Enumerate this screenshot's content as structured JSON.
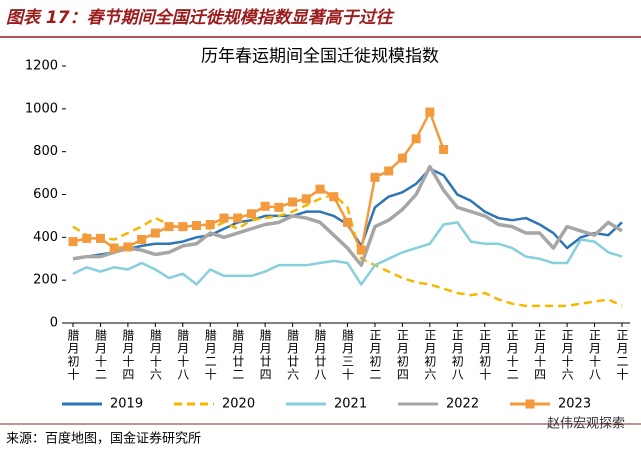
{
  "header": {
    "title": "图表 17：春节期间全国迁徙规模指数显著高于过往"
  },
  "chart_data": {
    "type": "line",
    "title": "历年春运期间全国迁徙规模指数",
    "categories": [
      "腊月初十",
      null,
      "腊月十二",
      null,
      "腊月十四",
      null,
      "腊月十六",
      null,
      "腊月十八",
      null,
      "腊月二十",
      null,
      "腊月廿二",
      null,
      "腊月廿四",
      null,
      "腊月廿六",
      null,
      "腊月廿八",
      null,
      "腊月三十",
      null,
      "正月初二",
      null,
      "正月初四",
      null,
      "正月初六",
      null,
      "正月初八",
      null,
      "正月初十",
      null,
      "正月十二",
      null,
      "正月十四",
      null,
      "正月十六",
      null,
      "正月十八",
      null,
      "正月二十"
    ],
    "ylim": [
      0,
      1200
    ],
    "yticks": [
      0,
      200,
      400,
      600,
      800,
      1000,
      1200
    ],
    "series": [
      {
        "name": "2019",
        "color": "#2e75b6",
        "values": [
          300,
          310,
          320,
          330,
          345,
          360,
          370,
          370,
          380,
          400,
          410,
          440,
          470,
          480,
          500,
          500,
          500,
          520,
          520,
          500,
          460,
          360,
          540,
          590,
          610,
          650,
          720,
          690,
          600,
          570,
          520,
          490,
          480,
          490,
          460,
          420,
          350,
          400,
          420,
          410,
          470
        ]
      },
      {
        "name": "2020",
        "color": "#f5b800",
        "dash": true,
        "values": [
          450,
          410,
          400,
          390,
          420,
          450,
          490,
          460,
          440,
          450,
          440,
          470,
          440,
          480,
          490,
          500,
          520,
          550,
          580,
          600,
          540,
          300,
          270,
          240,
          210,
          190,
          180,
          160,
          140,
          130,
          140,
          110,
          90,
          80,
          80,
          80,
          80,
          90,
          100,
          110,
          80
        ]
      },
      {
        "name": "2021",
        "color": "#86cfdc",
        "values": [
          230,
          260,
          240,
          260,
          250,
          280,
          250,
          210,
          230,
          180,
          250,
          220,
          220,
          220,
          240,
          270,
          270,
          270,
          280,
          290,
          280,
          180,
          270,
          300,
          330,
          350,
          370,
          460,
          470,
          380,
          370,
          370,
          350,
          310,
          300,
          280,
          280,
          390,
          380,
          330,
          310
        ]
      },
      {
        "name": "2022",
        "color": "#a6a6a6",
        "values": [
          300,
          310,
          310,
          330,
          350,
          340,
          320,
          330,
          360,
          370,
          420,
          400,
          420,
          440,
          460,
          470,
          500,
          490,
          470,
          410,
          350,
          270,
          450,
          480,
          530,
          600,
          730,
          620,
          540,
          520,
          500,
          460,
          450,
          420,
          420,
          350,
          450,
          430,
          410,
          470,
          430
        ]
      },
      {
        "name": "2023",
        "color": "#f39a3d",
        "marker": "square",
        "values": [
          380,
          395,
          395,
          350,
          355,
          390,
          420,
          450,
          450,
          455,
          460,
          490,
          490,
          510,
          545,
          540,
          565,
          580,
          625,
          590,
          470,
          340,
          680,
          710,
          770,
          860,
          985,
          810,
          null,
          null,
          null,
          null,
          null,
          null,
          null,
          null,
          null,
          null,
          null,
          null,
          null
        ]
      }
    ]
  },
  "source": "来源：百度地图，国金证券研究所",
  "watermark": "赵伟宏观探索"
}
